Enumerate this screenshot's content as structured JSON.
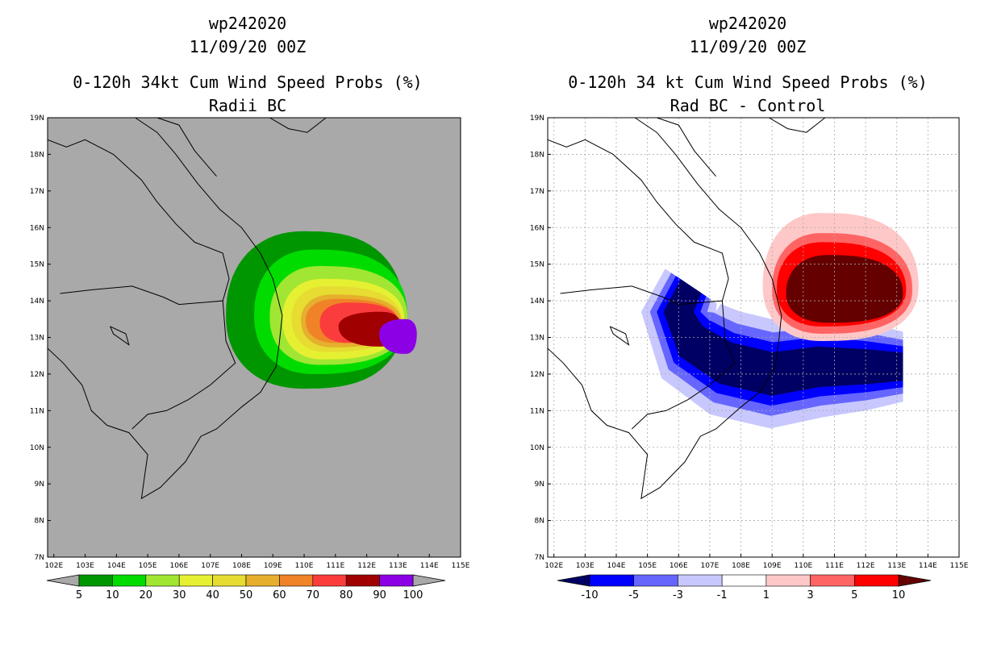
{
  "chart_data": [
    {
      "type": "heatmap",
      "storm_id": "wp242020",
      "date": "11/09/20 00Z",
      "title": "0-120h 34kt Cum Wind Speed Probs (%)",
      "subtitle": "Radii BC",
      "background_color": "#a9a9a9",
      "x_ticks": [
        "102E",
        "103E",
        "104E",
        "105E",
        "106E",
        "107E",
        "108E",
        "109E",
        "110E",
        "111E",
        "112E",
        "113E",
        "114E",
        "115E"
      ],
      "y_ticks": [
        "7N",
        "8N",
        "9N",
        "10N",
        "11N",
        "12N",
        "13N",
        "14N",
        "15N",
        "16N",
        "17N",
        "18N",
        "19N"
      ],
      "xlim": [
        101.8,
        115.0
      ],
      "ylim": [
        7.0,
        19.0
      ],
      "grid": false,
      "colorbar": {
        "labels": [
          "5",
          "10",
          "20",
          "30",
          "40",
          "50",
          "60",
          "70",
          "80",
          "90",
          "100"
        ],
        "colors": [
          "#009600",
          "#00dc00",
          "#a0e632",
          "#e6f032",
          "#e6dc32",
          "#e6af2d",
          "#f08228",
          "#fa3c3c",
          "#a00000",
          "#8c00e6"
        ],
        "ends": [
          "#a9a9a9",
          "#a9a9a9"
        ]
      },
      "contour_levels": [
        {
          "level": 5,
          "color": "#009600",
          "cx": 110.0,
          "cy": 13.6,
          "w": 2.5,
          "e": 3.2,
          "n": 2.3,
          "s": 2.0
        },
        {
          "level": 10,
          "color": "#00dc00",
          "cx": 110.3,
          "cy": 13.6,
          "w": 1.9,
          "e": 3.0,
          "n": 1.8,
          "s": 1.6
        },
        {
          "level": 20,
          "color": "#a0e632",
          "cx": 110.5,
          "cy": 13.55,
          "w": 1.6,
          "e": 2.8,
          "n": 1.4,
          "s": 1.3
        },
        {
          "level": 30,
          "color": "#e6f032",
          "cx": 110.6,
          "cy": 13.5,
          "w": 1.3,
          "e": 2.6,
          "n": 1.1,
          "s": 1.1
        },
        {
          "level": 40,
          "color": "#e6dc32",
          "cx": 110.7,
          "cy": 13.5,
          "w": 1.1,
          "e": 2.4,
          "n": 0.9,
          "s": 0.9
        },
        {
          "level": 50,
          "color": "#e6af2d",
          "cx": 110.9,
          "cy": 13.45,
          "w": 1.0,
          "e": 2.2,
          "n": 0.72,
          "s": 0.72
        },
        {
          "level": 60,
          "color": "#f08228",
          "cx": 111.0,
          "cy": 13.45,
          "w": 0.95,
          "e": 2.0,
          "n": 0.6,
          "s": 0.6
        },
        {
          "level": 70,
          "color": "#fa3c3c",
          "cx": 111.4,
          "cy": 13.4,
          "w": 0.9,
          "e": 1.6,
          "n": 0.55,
          "s": 0.55
        },
        {
          "level": 80,
          "color": "#a00000",
          "cx": 112.4,
          "cy": 13.3,
          "w": 1.3,
          "e": 0.7,
          "n": 0.4,
          "s": 0.55
        },
        {
          "level": 90,
          "color": "#8c00e6",
          "cx": 113.2,
          "cy": 13.1,
          "w": 0.8,
          "e": 0.4,
          "n": 0.4,
          "s": 0.55
        }
      ]
    },
    {
      "type": "heatmap",
      "storm_id": "wp242020",
      "date": "11/09/20 00Z",
      "title": "0-120h 34 kt Cum Wind Speed Probs (%)",
      "subtitle": "Rad BC - Control",
      "background_color": "#ffffff",
      "x_ticks": [
        "102E",
        "103E",
        "104E",
        "105E",
        "106E",
        "107E",
        "108E",
        "109E",
        "110E",
        "111E",
        "112E",
        "113E",
        "114E",
        "115E"
      ],
      "y_ticks": [
        "7N",
        "8N",
        "9N",
        "10N",
        "11N",
        "12N",
        "13N",
        "14N",
        "15N",
        "16N",
        "17N",
        "18N",
        "19N"
      ],
      "xlim": [
        101.8,
        115.0
      ],
      "ylim": [
        7.0,
        19.0
      ],
      "grid": true,
      "colorbar": {
        "labels": [
          "-10",
          "-5",
          "-3",
          "-1",
          "1",
          "3",
          "5",
          "10"
        ],
        "colors": [
          "#0000ff",
          "#6666ff",
          "#c8c8ff",
          "#ffffff",
          "#ffc8c8",
          "#ff6464",
          "#ff0000"
        ],
        "ends": [
          "#000064",
          "#640000"
        ]
      },
      "negative_lobe": [
        {
          "level": -1,
          "color": "#c8c8ff",
          "width": 3.0
        },
        {
          "level": -3,
          "color": "#6666ff",
          "width": 2.3
        },
        {
          "level": -5,
          "color": "#0000ff",
          "width": 1.75
        },
        {
          "level": -10,
          "color": "#000064",
          "width": 1.2
        }
      ],
      "positive_lobe": [
        {
          "level": 1,
          "color": "#ffc8c8",
          "cx": 110.6,
          "cy": 14.4,
          "w": 1.9,
          "e": 3.1,
          "n": 2.0,
          "s": 1.5
        },
        {
          "level": 3,
          "color": "#ff6464",
          "cx": 110.6,
          "cy": 14.3,
          "w": 1.6,
          "e": 2.9,
          "n": 1.55,
          "s": 1.2
        },
        {
          "level": 5,
          "color": "#ff0000",
          "cx": 110.6,
          "cy": 14.3,
          "w": 1.45,
          "e": 2.7,
          "n": 1.3,
          "s": 1.0
        },
        {
          "level": 10,
          "color": "#640000",
          "cx": 110.8,
          "cy": 14.2,
          "w": 1.35,
          "e": 2.4,
          "n": 1.05,
          "s": 0.8
        }
      ]
    }
  ]
}
